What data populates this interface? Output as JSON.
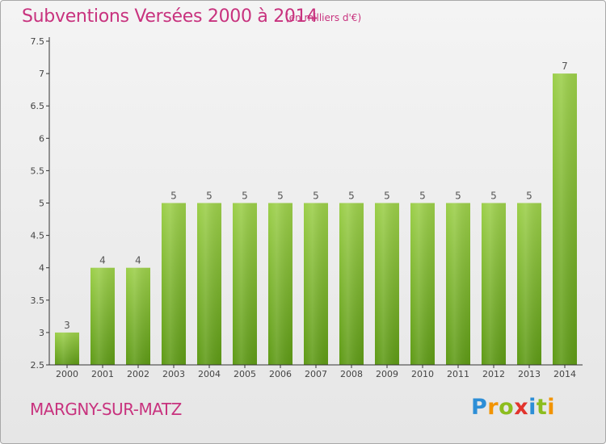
{
  "chart_data": {
    "type": "bar",
    "title": "Subventions Versées 2000 à 2014",
    "subtitle": "(en milliers d'€)",
    "categories": [
      "2000",
      "2001",
      "2002",
      "2003",
      "2004",
      "2005",
      "2006",
      "2007",
      "2008",
      "2009",
      "2010",
      "2011",
      "2012",
      "2013",
      "2014"
    ],
    "values": [
      3,
      4,
      4,
      5,
      5,
      5,
      5,
      5,
      5,
      5,
      5,
      5,
      5,
      5,
      7
    ],
    "data_labels": [
      "3",
      "4",
      "4",
      "5",
      "5",
      "5",
      "5",
      "5",
      "5",
      "5",
      "5",
      "5",
      "5",
      "5",
      "7"
    ],
    "y_ticks": [
      "2.5",
      "3",
      "3.5",
      "4",
      "4.5",
      "5",
      "5.5",
      "6",
      "6.5",
      "7",
      "7.5"
    ],
    "ylim": [
      2.5,
      7.5
    ],
    "grid": false,
    "bar_color_top": "#9ccf4a",
    "bar_color_bottom": "#5e9a16"
  },
  "footer": {
    "commune": "MARGNY-SUR-MATZ",
    "brand_letters": [
      "P",
      "r",
      "o",
      "x",
      "i",
      "t",
      "i"
    ],
    "brand_colors": [
      "#2d8ed6",
      "#f29400",
      "#8cbd1e",
      "#e2332c",
      "#2d8ed6",
      "#8cbd1e",
      "#f29400"
    ]
  },
  "colors": {
    "title": "#c8327e",
    "axis": "#333333"
  }
}
